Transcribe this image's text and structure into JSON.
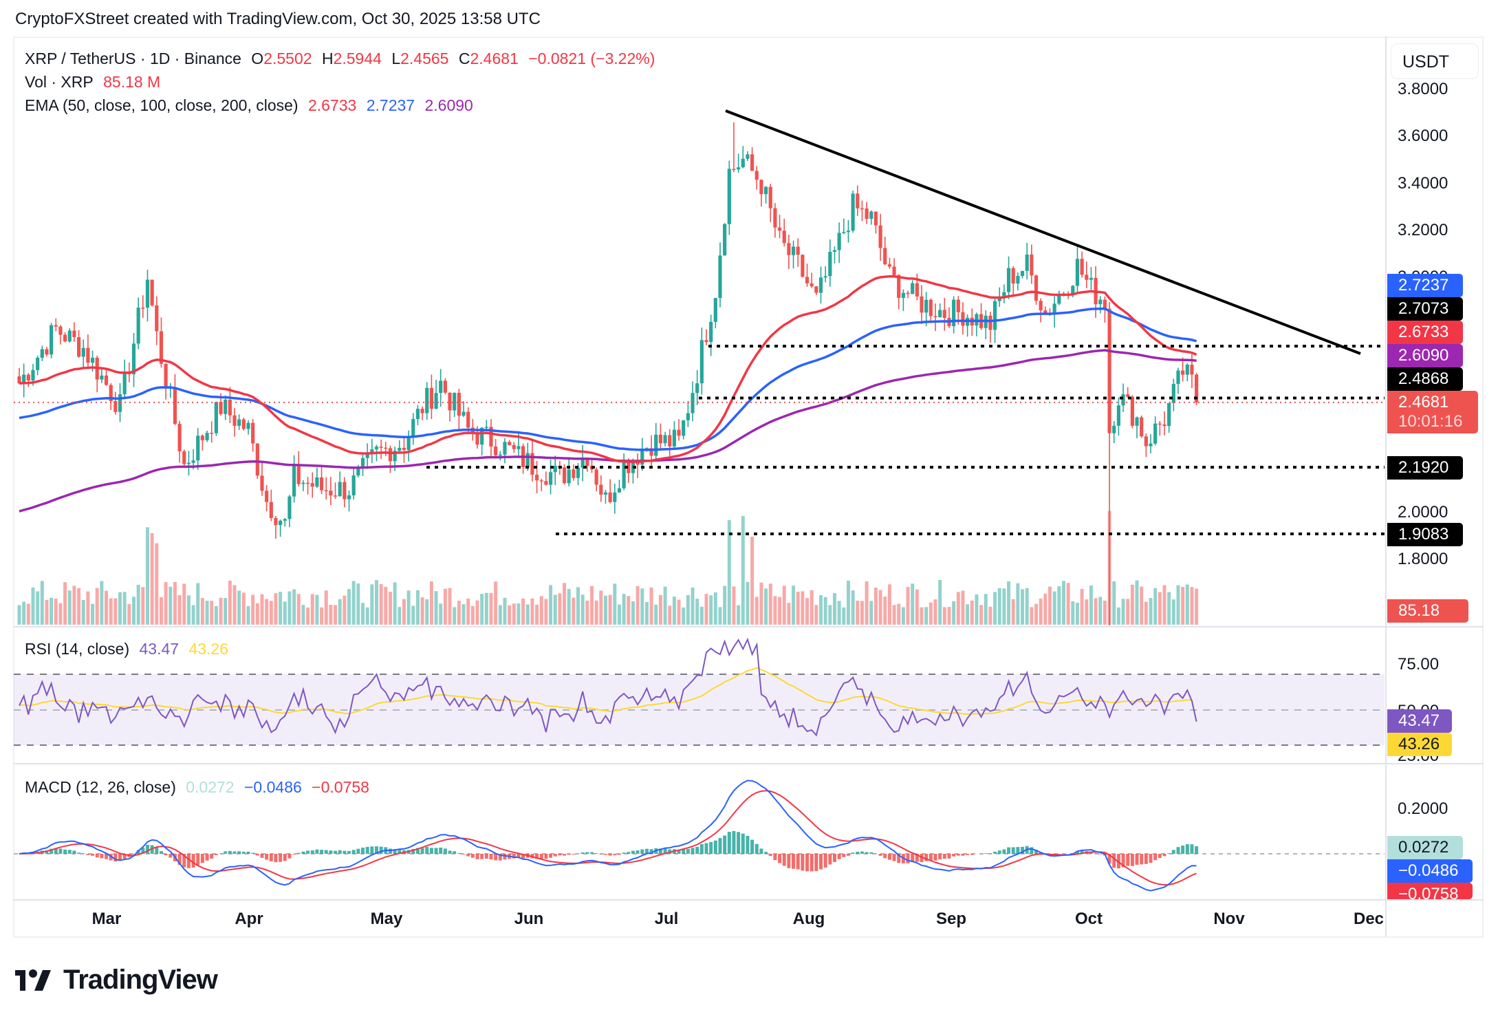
{
  "attribution": "CryptoFXStreet created with TradingView.com, Oct 30, 2025 13:58 UTC",
  "legend": {
    "symbol": "XRP / TetherUS · 1D · Binance",
    "open_label": "O",
    "open": "2.5502",
    "high_label": "H",
    "high": "2.5944",
    "low_label": "L",
    "low": "2.4565",
    "close_label": "C",
    "close": "2.4681",
    "change": "−0.0821 (−3.22%)",
    "vol_label": "Vol · XRP",
    "vol_value": "85.18 M",
    "ema_label": "EMA (50, close, 100, close, 200, close)",
    "ema50": "2.6733",
    "ema100": "2.7237",
    "ema200": "2.6090"
  },
  "rsi_legend": {
    "label": "RSI (14, close)",
    "rsi": "43.47",
    "ma": "43.26"
  },
  "macd_legend": {
    "label": "MACD (12, 26, close)",
    "hist": "0.0272",
    "macd": "−0.0486",
    "signal": "−0.0758"
  },
  "price_axis": {
    "currency": "USDT",
    "ticks": [
      "3.8000",
      "3.6000",
      "3.4000",
      "3.2000",
      "2.0000",
      "1.8000"
    ],
    "ticks_hidden_partial": [
      "3.0000"
    ]
  },
  "price_tags": [
    {
      "value": "2.7237",
      "color": "#2962ff",
      "text": "#ffffff"
    },
    {
      "value": "2.7073",
      "color": "#000000",
      "text": "#ffffff"
    },
    {
      "value": "2.6733",
      "color": "#f23645",
      "text": "#ffffff"
    },
    {
      "value": "2.6090",
      "color": "#9c27b0",
      "text": "#ffffff"
    },
    {
      "value": "2.4868",
      "color": "#000000",
      "text": "#ffffff"
    },
    {
      "value": "2.4681",
      "countdown": "10:01:16",
      "color": "#ef5350",
      "text": "#ffffff"
    },
    {
      "value": "2.1920",
      "color": "#000000",
      "text": "#ffffff"
    },
    {
      "value": "1.9083",
      "color": "#000000",
      "text": "#ffffff"
    },
    {
      "value": "85.18 M",
      "color": "#ef5350",
      "text": "#ffffff"
    }
  ],
  "rsi_axis": {
    "ticks": [
      "75.00",
      "50.00",
      "25.00"
    ],
    "tag_rsi": "43.47",
    "tag_ma": "43.26"
  },
  "macd_axis": {
    "ticks": [
      "0.2000"
    ],
    "tag_hist": "0.0272",
    "tag_macd": "−0.0486",
    "tag_signal": "−0.0758"
  },
  "time_axis": {
    "months": [
      "Mar",
      "Apr",
      "May",
      "Jun",
      "Jul",
      "Aug",
      "Sep",
      "Oct",
      "Nov",
      "Dec"
    ]
  },
  "logo": {
    "text": "TradingView"
  },
  "colors": {
    "up": "#26a69a",
    "down": "#ef5350",
    "ema50": "#f23645",
    "ema100": "#2962ff",
    "ema200": "#9c27b0",
    "rsi": "#7e57c2",
    "rsi_ma": "#fdd835",
    "macd": "#2962ff",
    "signal": "#f23645"
  },
  "chart_data": [
    {
      "type": "candlestick",
      "title": "XRP / TetherUS · 1D · Binance",
      "xlabel": "",
      "ylabel": "USDT",
      "ylim": [
        1.7,
        3.85
      ],
      "x_ticks": [
        "Mar",
        "Apr",
        "May",
        "Jun",
        "Jul",
        "Aug",
        "Sep",
        "Oct",
        "Nov",
        "Dec"
      ],
      "y_ticks": [
        1.8,
        2.0,
        3.2,
        3.4,
        3.6,
        3.8
      ],
      "last": {
        "open": 2.5502,
        "high": 2.5944,
        "low": 2.4565,
        "close": 2.4681,
        "change": -0.0821,
        "change_pct": -3.22,
        "volume": "85.18M"
      },
      "ema": {
        "ema50": 2.6733,
        "ema100": 2.7237,
        "ema200": 2.609
      },
      "horizontal_levels": [
        2.7073,
        2.4868,
        2.192,
        1.9083
      ],
      "trendline": {
        "from": {
          "date": "Jul 10",
          "price": 3.7
        },
        "to": {
          "date": "Nov 29",
          "price": 2.55
        }
      },
      "approx_closes_by_month": [
        {
          "month": "Feb (mid)",
          "close": 2.6
        },
        {
          "month": "Mar",
          "close": 2.4
        },
        {
          "month": "Apr",
          "close": 2.1
        },
        {
          "month": "May",
          "close": 2.25
        },
        {
          "month": "Jun",
          "close": 2.2
        },
        {
          "month": "Jul",
          "close": 3.0
        },
        {
          "month": "Aug",
          "close": 2.85
        },
        {
          "month": "Sep",
          "close": 2.8
        },
        {
          "month": "Oct",
          "close": 2.47
        }
      ],
      "notable": [
        {
          "date": "Jul 18",
          "high": 3.66,
          "note": "cycle high"
        },
        {
          "date": "Oct 10",
          "low": 1.25,
          "note": "flash crash wick"
        }
      ]
    },
    {
      "type": "line",
      "title": "RSI (14, close)",
      "series": [
        {
          "name": "RSI",
          "last": 43.47
        },
        {
          "name": "RSI MA",
          "last": 43.26
        }
      ],
      "ylim": [
        15,
        95
      ],
      "bands": [
        30,
        50,
        70
      ],
      "y_ticks": [
        25,
        50,
        75
      ]
    },
    {
      "type": "line",
      "title": "MACD (12, 26, close)",
      "series": [
        {
          "name": "Histogram",
          "last": 0.0272
        },
        {
          "name": "MACD",
          "last": -0.0486
        },
        {
          "name": "Signal",
          "last": -0.0758
        }
      ],
      "y_ticks": [
        0.2
      ],
      "peak": {
        "date": "Jul 20",
        "macd": 0.24
      }
    }
  ]
}
